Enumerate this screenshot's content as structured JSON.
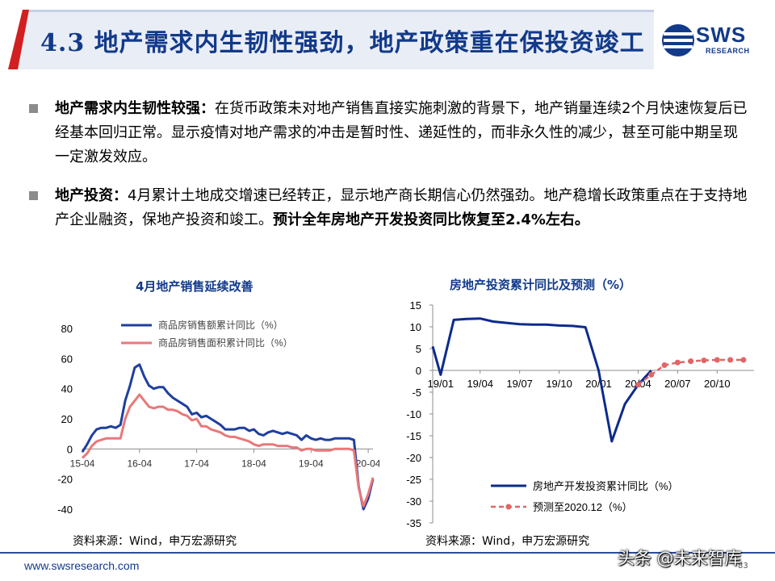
{
  "header": {
    "title": "4.3 地产需求内生韧性强劲，地产政策重在保投资竣工",
    "logo_text": "SWS",
    "logo_sub": "RESEARCH"
  },
  "bullets": [
    {
      "bold": "地产需求内生韧性较强：",
      "text": "在货币政策未对地产销售直接实施刺激的背景下，地产销量连续2个月快速恢复后已经基本回归正常。显示疫情对地产需求的冲击是暂时性、递延性的，而非永久性的减少，甚至可能中期呈现一定激发效应。",
      "bold_tail": ""
    },
    {
      "bold": "地产投资：",
      "text": "4月累计土地成交增速已经转正，显示地产商长期信心仍然强劲。地产稳增长政策重点在于支持地产企业融资，保地产投资和竣工。",
      "bold_tail": "预计全年房地产开发投资同比恢复至2.4%左右。"
    }
  ],
  "colors": {
    "navy": "#123a8a",
    "sales_amount": "#1f3f9e",
    "sales_area": "#e8787a",
    "investment": "#0d2b8c",
    "forecast": "#e06666"
  },
  "chart_data": [
    {
      "type": "line",
      "title": "4月地产销售延续改善",
      "x_ticks": [
        "15-04",
        "16-04",
        "17-04",
        "18-04",
        "19-04",
        "20-04"
      ],
      "ylim": [
        -40,
        80
      ],
      "y_ticks": [
        -40,
        -20,
        0,
        20,
        40,
        60,
        80
      ],
      "legend_position": "top-left",
      "series": [
        {
          "name": "商品房销售额累计同比（%）",
          "x": [
            0,
            1,
            2,
            3,
            4,
            5,
            6,
            7,
            8,
            9,
            10,
            11,
            12,
            13,
            14,
            15,
            16,
            17,
            18,
            19,
            20,
            21,
            22,
            23,
            24,
            25,
            26,
            27,
            28,
            29,
            30,
            31,
            32,
            33,
            34,
            35,
            36,
            37,
            38,
            39,
            40,
            41,
            42,
            43,
            44,
            45,
            46,
            47,
            48,
            49,
            50,
            51,
            52,
            53,
            54,
            55,
            56,
            57,
            58,
            59,
            60,
            61
          ],
          "values": [
            -2,
            3,
            9,
            13,
            14,
            14,
            15,
            14,
            16,
            32,
            42,
            54,
            56,
            48,
            42,
            40,
            41,
            41,
            37,
            34,
            32,
            30,
            28,
            23,
            24,
            21,
            22,
            20,
            18,
            16,
            13,
            13,
            13,
            14,
            14,
            12,
            13,
            10,
            9,
            11,
            12,
            11,
            10,
            11,
            10,
            9,
            6,
            9,
            7,
            6,
            7,
            6,
            6,
            7,
            7,
            7,
            7,
            6,
            -25,
            -40,
            -33,
            -20
          ]
        },
        {
          "name": "商品房销售面积累计同比（%）",
          "x": [
            0,
            1,
            2,
            3,
            4,
            5,
            6,
            7,
            8,
            9,
            10,
            11,
            12,
            13,
            14,
            15,
            16,
            17,
            18,
            19,
            20,
            21,
            22,
            23,
            24,
            25,
            26,
            27,
            28,
            29,
            30,
            31,
            32,
            33,
            34,
            35,
            36,
            37,
            38,
            39,
            40,
            41,
            42,
            43,
            44,
            45,
            46,
            47,
            48,
            49,
            50,
            51,
            52,
            53,
            54,
            55,
            56,
            57,
            58,
            59,
            60,
            61
          ],
          "values": [
            -6,
            -3,
            2,
            5,
            6,
            7,
            7,
            7,
            7,
            20,
            28,
            32,
            36,
            32,
            28,
            27,
            28,
            28,
            26,
            26,
            25,
            23,
            22,
            19,
            20,
            15,
            15,
            13,
            12,
            11,
            9,
            8,
            8,
            7,
            6,
            5,
            3,
            2,
            3,
            3,
            3,
            2,
            2,
            2,
            1,
            1,
            -1,
            0,
            0,
            -1,
            -1,
            -1,
            -1,
            0,
            0,
            0,
            0,
            -1,
            -26,
            -38,
            -30,
            -19
          ]
        }
      ]
    },
    {
      "type": "line",
      "title": "房地产投资累计同比及预测（%）",
      "x_ticks": [
        "19/01",
        "19/04",
        "19/07",
        "19/10",
        "20/01",
        "20/04",
        "20/07",
        "20/10"
      ],
      "ylim": [
        -35,
        15
      ],
      "y_ticks": [
        -35,
        -30,
        -25,
        -20,
        -15,
        -10,
        -5,
        0,
        5,
        10,
        15
      ],
      "legend_position": "bottom-left",
      "series": [
        {
          "name": "房地产开发投资累计同比（%）",
          "x": [
            "18/12",
            "19/01",
            "19/02",
            "19/03",
            "19/04",
            "19/05",
            "19/06",
            "19/07",
            "19/08",
            "19/09",
            "19/10",
            "19/11",
            "19/12",
            "20/01",
            "20/02",
            "20/03",
            "20/04",
            "20/05"
          ],
          "values": [
            5.5,
            -1,
            11.6,
            11.8,
            11.9,
            11.2,
            10.9,
            10.6,
            10.5,
            10.5,
            10.3,
            10.2,
            9.9,
            0,
            -16.3,
            -7.7,
            -3.3,
            0
          ]
        },
        {
          "name": "预测至2020.12（%）",
          "x": [
            "20/04",
            "20/05",
            "20/06",
            "20/07",
            "20/08",
            "20/09",
            "20/10",
            "20/11",
            "20/12"
          ],
          "values": [
            -3.3,
            -1,
            1.2,
            1.8,
            2.1,
            2.3,
            2.4,
            2.4,
            2.4
          ]
        }
      ]
    }
  ],
  "sources": {
    "left": "资料来源：Wind，申万宏源研究",
    "right": "资料来源：Wind，申万宏源研究"
  },
  "footer": {
    "url": "www.swsresearch.com",
    "page": "83",
    "watermark": "头条 @未来智库"
  }
}
